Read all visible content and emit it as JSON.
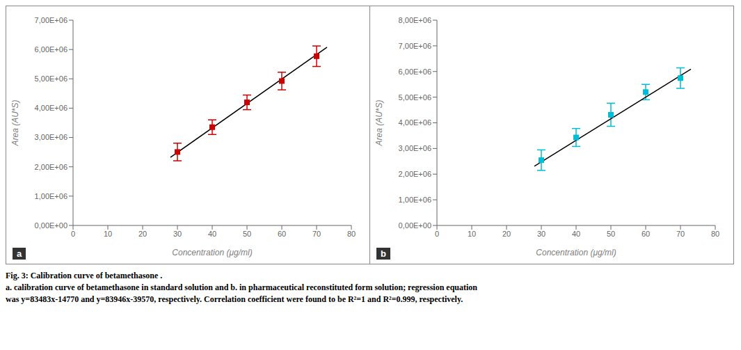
{
  "chart_data": [
    {
      "type": "scatter",
      "annotations": [
        "a"
      ],
      "xlabel": "Concentration  (μg/ml)",
      "ylabel": "Area (AU*S)",
      "xlim": [
        0,
        80
      ],
      "ylim": [
        0,
        7000000
      ],
      "xticks": [
        0,
        10,
        20,
        30,
        40,
        50,
        60,
        70,
        80
      ],
      "yticks": [
        {
          "value": 0,
          "label": "0,00E+00"
        },
        {
          "value": 1000000,
          "label": "1,00E+06"
        },
        {
          "value": 2000000,
          "label": "2,00E+06"
        },
        {
          "value": 3000000,
          "label": "3,00E+06"
        },
        {
          "value": 4000000,
          "label": "4,00E+06"
        },
        {
          "value": 5000000,
          "label": "5,00E+06"
        },
        {
          "value": 6000000,
          "label": "6,00E+06"
        },
        {
          "value": 7000000,
          "label": "7,00E+06"
        }
      ],
      "grid": false,
      "series": [
        {
          "type": "line",
          "x": [
            28,
            73
          ],
          "values": [
            2322754,
            6079489
          ],
          "color": "#000000"
        },
        {
          "type": "scatter",
          "x": [
            30,
            40,
            50,
            60,
            70
          ],
          "values": [
            2504900,
            3351340,
            4197780,
            4924480,
            5770920
          ],
          "yerr": [
            300000,
            250000,
            250000,
            300000,
            350000
          ],
          "color": "#cc0000",
          "marker": "square"
        }
      ]
    },
    {
      "type": "scatter",
      "annotations": [
        "b"
      ],
      "xlabel": "Concentration (μg/ml)",
      "ylabel": "Area (AU*S)",
      "xlim": [
        0,
        80
      ],
      "ylim": [
        0,
        8000000
      ],
      "xticks": [
        0,
        10,
        20,
        30,
        40,
        50,
        60,
        70,
        80
      ],
      "yticks": [
        {
          "value": 0,
          "label": "0,00E+00"
        },
        {
          "value": 1000000,
          "label": "1,00E+06"
        },
        {
          "value": 2000000,
          "label": "2,00E+06"
        },
        {
          "value": 3000000,
          "label": "3,00E+06"
        },
        {
          "value": 4000000,
          "label": "4,00E+06"
        },
        {
          "value": 5000000,
          "label": "5,00E+06"
        },
        {
          "value": 6000000,
          "label": "6,00E+06"
        },
        {
          "value": 7000000,
          "label": "7,00E+06"
        },
        {
          "value": 8000000,
          "label": "8,00E+06"
        }
      ],
      "grid": false,
      "series": [
        {
          "type": "line",
          "x": [
            28,
            73
          ],
          "values": [
            2310918,
            6088488
          ],
          "color": "#000000"
        },
        {
          "type": "scatter",
          "x": [
            30,
            40,
            50,
            60,
            70
          ],
          "values": [
            2544830,
            3429200,
            4313570,
            5197940,
            5742300
          ],
          "yerr": [
            400000,
            350000,
            450000,
            300000,
            400000
          ],
          "color": "#00bcd4",
          "marker": "square"
        }
      ]
    }
  ],
  "annotations": [
    "Fig. 3: Calibration curve of betamethasone .",
    "a. calibration curve of betamethasone in standard solution and b. in pharmaceutical reconstituted form solution; regression equation",
    "was y=83483x-14770 and y=83946x-39570, respectively. Correlation coefficient were found to be R²=1 and R²=0.999, respectively."
  ]
}
